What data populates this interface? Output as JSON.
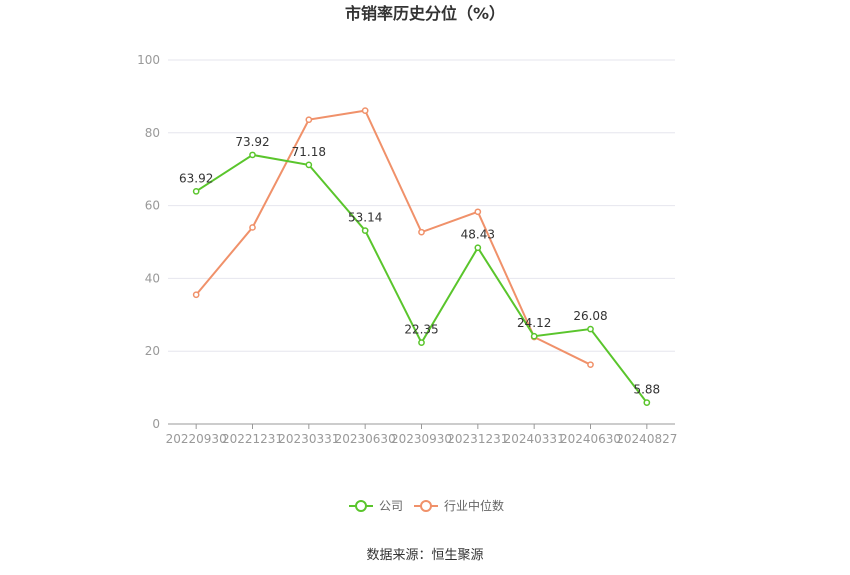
{
  "chart_data": {
    "type": "line",
    "title": "市销率历史分位（%）",
    "categories": [
      "20220930",
      "20221231",
      "20230331",
      "20230630",
      "20230930",
      "20231231",
      "20240331",
      "20240630",
      "20240827"
    ],
    "ylim": [
      0,
      100
    ],
    "yticks": [
      0,
      20,
      40,
      60,
      80,
      100
    ],
    "grid": true,
    "legend_position": "bottom",
    "series": [
      {
        "name": "公司",
        "color": "#5ac52c",
        "values": [
          63.92,
          73.92,
          71.18,
          53.14,
          22.35,
          48.43,
          24.12,
          26.08,
          5.88
        ],
        "labels": [
          "63.92",
          "73.92",
          "71.18",
          "53.14",
          "22.35",
          "48.43",
          "24.12",
          "26.08",
          "5.88"
        ]
      },
      {
        "name": "行业中位数",
        "color": "#f0916a",
        "values": [
          35.5,
          54.0,
          83.6,
          86.1,
          52.7,
          58.3,
          23.9,
          16.3,
          null
        ]
      }
    ],
    "source": "数据来源：恒生聚源"
  }
}
